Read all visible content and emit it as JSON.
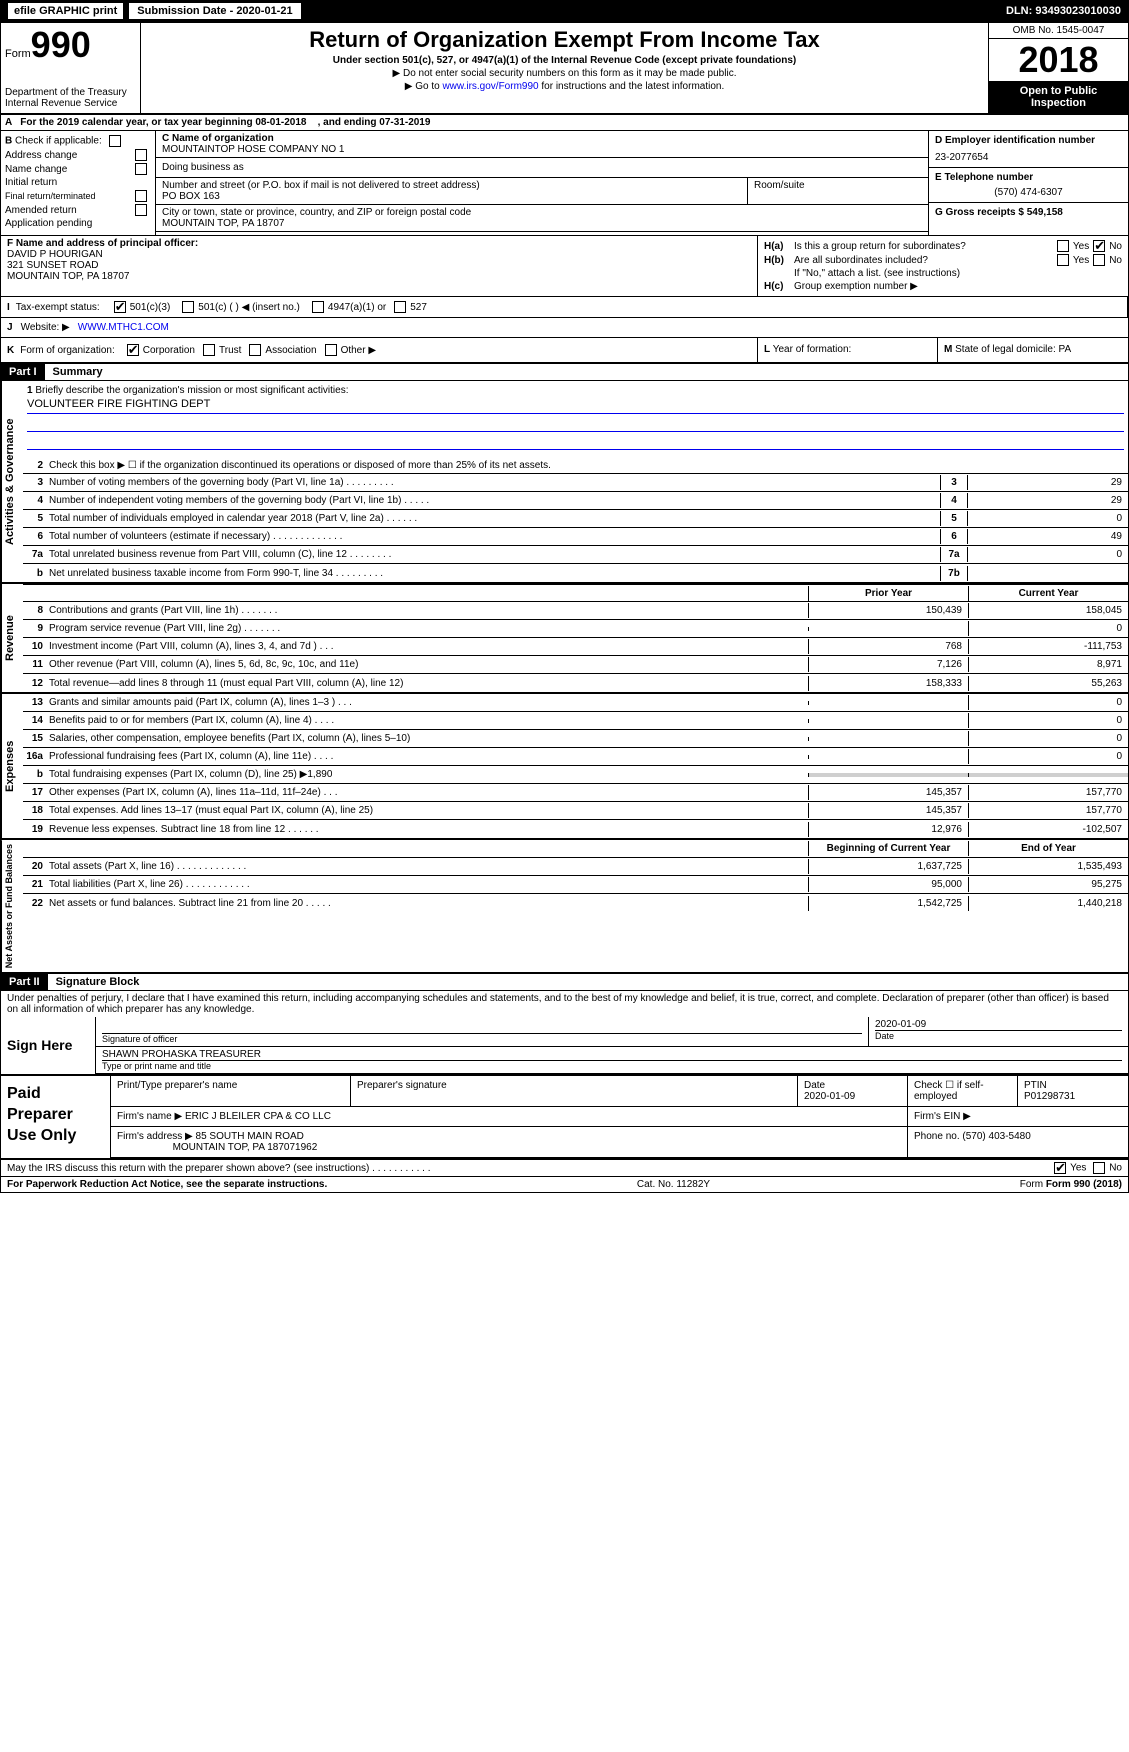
{
  "header_bar": {
    "efile": "efile GRAPHIC print",
    "submission_label": "Submission Date - 2020-01-21",
    "dln": "DLN: 93493023010030"
  },
  "form_id": {
    "form_word": "Form",
    "form_num": "990",
    "dept": "Department of the Treasury\nInternal Revenue Service"
  },
  "title": {
    "main": "Return of Organization Exempt From Income Tax",
    "sub": "Under section 501(c), 527, or 4947(a)(1) of the Internal Revenue Code (except private foundations)",
    "note1": "▶ Do not enter social security numbers on this form as it may be made public.",
    "note2_pre": "▶ Go to ",
    "note2_link": "www.irs.gov/Form990",
    "note2_post": " for instructions and the latest information."
  },
  "year_box": {
    "omb": "OMB No. 1545-0047",
    "year": "2018",
    "open": "Open to Public Inspection"
  },
  "row_a": {
    "label": "A",
    "text_pre": "For the 2019 calendar year, or tax year beginning ",
    "begin": "08-01-2018",
    "mid": ", and ending ",
    "end": "07-31-2019"
  },
  "col_b": {
    "label": "B",
    "check_label": "Check if applicable:",
    "items": [
      "Address change",
      "Name change",
      "Initial return",
      "Final return/terminated",
      "Amended return",
      "Application pending"
    ]
  },
  "col_c": {
    "name_label": "C Name of organization",
    "name": "MOUNTAINTOP HOSE COMPANY NO 1",
    "dba_label": "Doing business as",
    "street_label": "Number and street (or P.O. box if mail is not delivered to street address)",
    "street": "PO BOX 163",
    "room_label": "Room/suite",
    "city_label": "City or town, state or province, country, and ZIP or foreign postal code",
    "city": "MOUNTAIN TOP, PA  18707"
  },
  "col_d": {
    "ein_label": "D Employer identification number",
    "ein": "23-2077654",
    "tel_label": "E Telephone number",
    "tel": "(570) 474-6307",
    "gross_label": "G Gross receipts $",
    "gross": "549,158"
  },
  "col_f": {
    "label": "F  Name and address of principal officer:",
    "name": "DAVID P HOURIGAN",
    "street": "321 SUNSET ROAD",
    "city": "MOUNTAIN TOP, PA  18707"
  },
  "col_h": {
    "ha_label": "H(a)",
    "ha_text": "Is this a group return for subordinates?",
    "hb_label": "H(b)",
    "hb_text": "Are all subordinates included?",
    "hb_note": "If \"No,\" attach a list. (see instructions)",
    "hc_label": "H(c)",
    "hc_text": "Group exemption number ▶"
  },
  "row_i": {
    "label": "I",
    "text": "Tax-exempt status:",
    "opts": [
      "501(c)(3)",
      "501(c) (  ) ◀ (insert no.)",
      "4947(a)(1) or",
      "527"
    ]
  },
  "row_j": {
    "label": "J",
    "text": "Website: ▶",
    "url": "WWW.MTHC1.COM"
  },
  "row_k": {
    "label": "K",
    "text": "Form of organization:",
    "opts": [
      "Corporation",
      "Trust",
      "Association",
      "Other ▶"
    ]
  },
  "row_l": {
    "label": "L",
    "text": "Year of formation:"
  },
  "row_m": {
    "label": "M",
    "text": "State of legal domicile:",
    "val": "PA"
  },
  "part1": {
    "header": "Part I",
    "title": "Summary"
  },
  "activities_label": "Activities & Governance",
  "line1": {
    "num": "1",
    "text": "Briefly describe the organization's mission or most significant activities:",
    "val": "VOLUNTEER FIRE FIGHTING DEPT"
  },
  "line2": {
    "num": "2",
    "text": "Check this box ▶ ☐ if the organization discontinued its operations or disposed of more than 25% of its net assets."
  },
  "lines_gov": [
    {
      "num": "3",
      "text": "Number of voting members of the governing body (Part VI, line 1a)  .    .    .    .    .    .    .    .    .",
      "box": "3",
      "val": "29"
    },
    {
      "num": "4",
      "text": "Number of independent voting members of the governing body (Part VI, line 1b)  .    .    .    .    .",
      "box": "4",
      "val": "29"
    },
    {
      "num": "5",
      "text": "Total number of individuals employed in calendar year 2018 (Part V, line 2a)  .    .    .    .    .    .",
      "box": "5",
      "val": "0"
    },
    {
      "num": "6",
      "text": "Total number of volunteers (estimate if necessary)  .    .    .    .    .    .    .    .    .    .    .    .    .",
      "box": "6",
      "val": "49"
    },
    {
      "num": "7a",
      "text": "Total unrelated business revenue from Part VIII, column (C), line 12  .    .    .    .    .    .    .    .",
      "box": "7a",
      "val": "0"
    },
    {
      "num": "b",
      "text": "Net unrelated business taxable income from Form 990-T, line 34  .    .    .    .    .    .    .    .    .",
      "box": "7b",
      "val": ""
    }
  ],
  "col_headers": {
    "prior": "Prior Year",
    "curr": "Current Year"
  },
  "revenue_label": "Revenue",
  "lines_rev": [
    {
      "num": "8",
      "text": "Contributions and grants (Part VIII, line 1h)  .    .    .    .    .    .    .",
      "prior": "150,439",
      "curr": "158,045"
    },
    {
      "num": "9",
      "text": "Program service revenue (Part VIII, line 2g)  .    .    .    .    .    .    .",
      "prior": "",
      "curr": "0"
    },
    {
      "num": "10",
      "text": "Investment income (Part VIII, column (A), lines 3, 4, and 7d )  .    .    .",
      "prior": "768",
      "curr": "-111,753"
    },
    {
      "num": "11",
      "text": "Other revenue (Part VIII, column (A), lines 5, 6d, 8c, 9c, 10c, and 11e)",
      "prior": "7,126",
      "curr": "8,971"
    },
    {
      "num": "12",
      "text": "Total revenue—add lines 8 through 11 (must equal Part VIII, column (A), line 12)",
      "prior": "158,333",
      "curr": "55,263"
    }
  ],
  "expenses_label": "Expenses",
  "lines_exp": [
    {
      "num": "13",
      "text": "Grants and similar amounts paid (Part IX, column (A), lines 1–3 )  .    .    .",
      "prior": "",
      "curr": "0"
    },
    {
      "num": "14",
      "text": "Benefits paid to or for members (Part IX, column (A), line 4)  .    .    .    .",
      "prior": "",
      "curr": "0"
    },
    {
      "num": "15",
      "text": "Salaries, other compensation, employee benefits (Part IX, column (A), lines 5–10)",
      "prior": "",
      "curr": "0"
    },
    {
      "num": "16a",
      "text": "Professional fundraising fees (Part IX, column (A), line 11e)  .    .    .    .",
      "prior": "",
      "curr": "0"
    },
    {
      "num": "b",
      "text": "Total fundraising expenses (Part IX, column (D), line 25) ▶1,890",
      "prior": "shaded",
      "curr": "shaded"
    },
    {
      "num": "17",
      "text": "Other expenses (Part IX, column (A), lines 11a–11d, 11f–24e)  .    .    .",
      "prior": "145,357",
      "curr": "157,770"
    },
    {
      "num": "18",
      "text": "Total expenses. Add lines 13–17 (must equal Part IX, column (A), line 25)",
      "prior": "145,357",
      "curr": "157,770"
    },
    {
      "num": "19",
      "text": "Revenue less expenses. Subtract line 18 from line 12  .    .    .    .    .    .",
      "prior": "12,976",
      "curr": "-102,507"
    }
  ],
  "net_label": "Net Assets or Fund Balances",
  "net_headers": {
    "prior": "Beginning of Current Year",
    "curr": "End of Year"
  },
  "lines_net": [
    {
      "num": "20",
      "text": "Total assets (Part X, line 16)  .    .    .    .    .    .    .    .    .    .    .    .    .",
      "prior": "1,637,725",
      "curr": "1,535,493"
    },
    {
      "num": "21",
      "text": "Total liabilities (Part X, line 26)  .    .    .    .    .    .    .    .    .    .    .    .",
      "prior": "95,000",
      "curr": "95,275"
    },
    {
      "num": "22",
      "text": "Net assets or fund balances. Subtract line 21 from line 20  .    .    .    .    .",
      "prior": "1,542,725",
      "curr": "1,440,218"
    }
  ],
  "part2": {
    "header": "Part II",
    "title": "Signature Block"
  },
  "perjury": "Under penalties of perjury, I declare that I have examined this return, including accompanying schedules and statements, and to the best of my knowledge and belief, it is true, correct, and complete. Declaration of preparer (other than officer) is based on all information of which preparer has any knowledge.",
  "sign": {
    "label": "Sign Here",
    "sig_label": "Signature of officer",
    "date_val": "2020-01-09",
    "date_label": "Date",
    "name": "SHAWN PROHASKA  TREASURER",
    "name_label": "Type or print name and title"
  },
  "paid": {
    "label": "Paid Preparer Use Only",
    "h1": "Print/Type preparer's name",
    "h2": "Preparer's signature",
    "h3": "Date",
    "h3v": "2020-01-09",
    "h4": "Check ☐ if self-employed",
    "h5": "PTIN",
    "h5v": "P01298731",
    "firm_label": "Firm's name    ▶",
    "firm": "ERIC J BLEILER CPA & CO LLC",
    "ein_label": "Firm's EIN ▶",
    "addr_label": "Firm's address ▶",
    "addr1": "85 SOUTH MAIN ROAD",
    "addr2": "MOUNTAIN TOP, PA  187071962",
    "phone_label": "Phone no.",
    "phone": "(570) 403-5480"
  },
  "footer": {
    "q": "May the IRS discuss this return with the preparer shown above? (see instructions)  .    .    .    .    .    .    .    .    .    .    .",
    "yes": "Yes",
    "no": "No",
    "reduction": "For Paperwork Reduction Act Notice, see the separate instructions.",
    "cat": "Cat. No. 11282Y",
    "form": "Form 990 (2018)"
  }
}
